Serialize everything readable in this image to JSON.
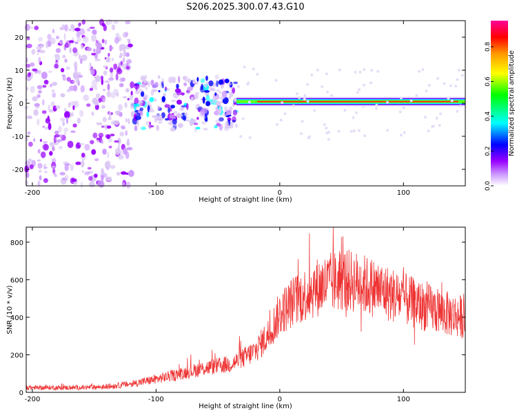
{
  "title": "S206.2025.300.07.43.G10",
  "chart_data": [
    {
      "type": "heatmap",
      "title": "S206.2025.300.07.43.G10",
      "xlabel": "Height of straight line (km)",
      "ylabel": "Frequency (Hz)",
      "xlim": [
        -205,
        150
      ],
      "ylim": [
        -25,
        25
      ],
      "xticks": [
        -200,
        -100,
        0,
        100
      ],
      "xtick_labels": [
        "-200",
        "-100",
        "0",
        "100"
      ],
      "yticks": [
        -20,
        -10,
        0,
        10,
        20
      ],
      "ytick_labels": [
        "-20",
        "-10",
        "0",
        "10",
        "20"
      ],
      "colorbar": {
        "label": "Normalized spectral amplitude",
        "range": [
          0,
          0.95
        ],
        "ticks": [
          0,
          0.2,
          0.4,
          0.6,
          0.8
        ],
        "tick_labels": [
          "0.0",
          "0.2",
          "0.4",
          "0.6",
          "0.8"
        ],
        "colors": [
          "#ffffff",
          "#cc99ff",
          "#9900ff",
          "#0000ff",
          "#00ffff",
          "#00ff00",
          "#ffff00",
          "#ff9900",
          "#ff0000",
          "#ff0099"
        ]
      },
      "features": [
        {
          "name": "scattered noise",
          "x_range": [
            -205,
            -120
          ],
          "freq_range": [
            -25,
            25
          ],
          "amplitude": 0.1
        },
        {
          "name": "transition cluster",
          "x_range": [
            -120,
            -35
          ],
          "freq_range": [
            -8,
            8
          ],
          "amplitude": 0.2
        },
        {
          "name": "stable signal line",
          "x_range": [
            -35,
            150
          ],
          "freq": 0.5,
          "amplitude": 0.9
        }
      ]
    },
    {
      "type": "line",
      "xlabel": "Height of straight line (km)",
      "ylabel": "SNR (10 * v/v)",
      "xlim": [
        -205,
        150
      ],
      "ylim": [
        0,
        880
      ],
      "xticks": [
        -200,
        -100,
        0,
        100
      ],
      "xtick_labels": [
        "-200",
        "-100",
        "0",
        "100"
      ],
      "yticks": [
        0,
        200,
        400,
        600,
        800
      ],
      "ytick_labels": [
        "0",
        "200",
        "400",
        "600",
        "800"
      ],
      "series": [
        {
          "name": "SNR",
          "color": "#ee3333",
          "x": [
            -205,
            -180,
            -160,
            -140,
            -120,
            -100,
            -80,
            -60,
            -40,
            -30,
            -20,
            -10,
            0,
            10,
            20,
            30,
            40,
            50,
            60,
            70,
            80,
            90,
            100,
            110,
            120,
            130,
            140,
            150
          ],
          "values": [
            25,
            25,
            25,
            30,
            45,
            70,
            100,
            130,
            150,
            180,
            220,
            300,
            420,
            480,
            520,
            560,
            580,
            600,
            590,
            570,
            550,
            520,
            500,
            470,
            450,
            430,
            410,
            400
          ]
        }
      ]
    }
  ]
}
